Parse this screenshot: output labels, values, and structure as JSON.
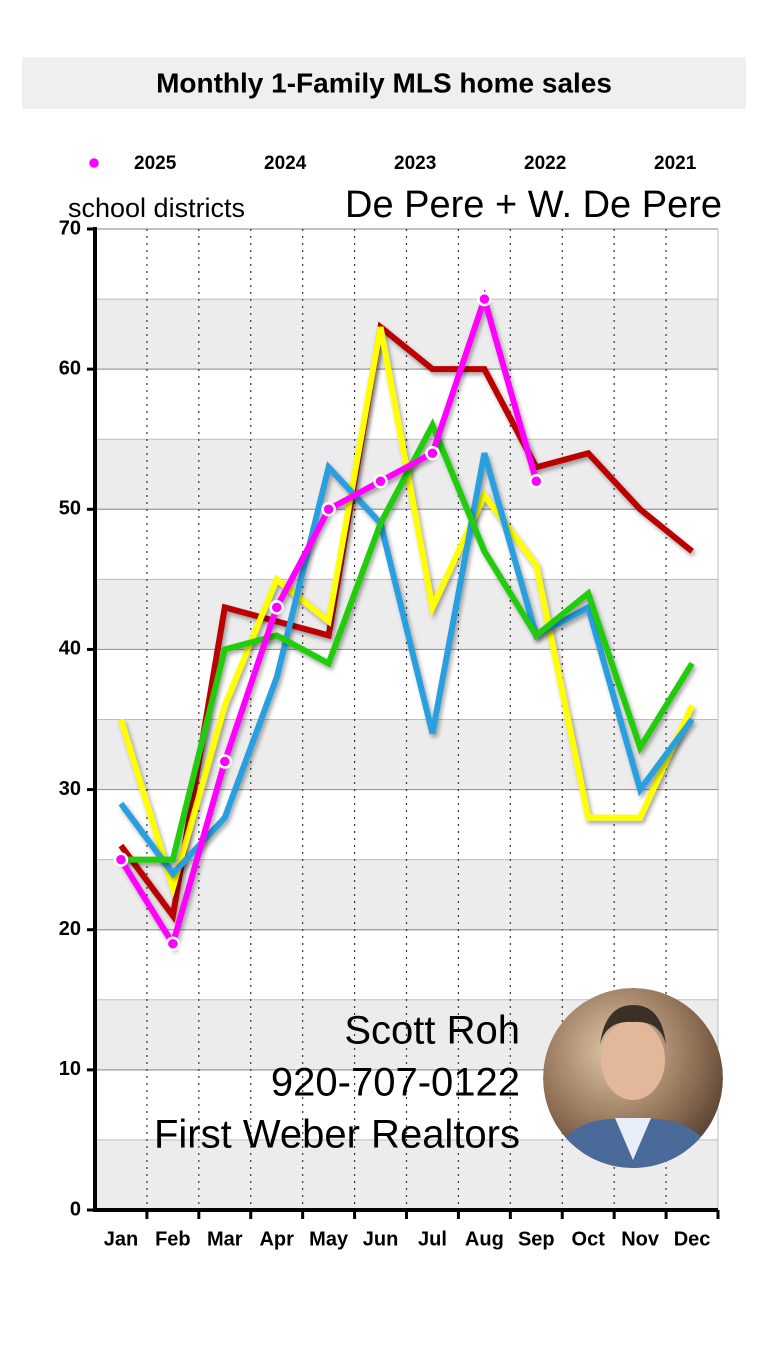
{
  "chart_data": {
    "type": "line",
    "title": "Monthly 1-Family MLS home sales",
    "subtitle": [
      "school districts",
      "De Pere + W. De Pere"
    ],
    "categories": [
      "Jan",
      "Feb",
      "Mar",
      "Apr",
      "May",
      "Jun",
      "Jul",
      "Aug",
      "Sep",
      "Oct",
      "Nov",
      "Dec"
    ],
    "series": [
      {
        "name": "2025",
        "color": "#ff00ff",
        "markers": true,
        "values": [
          25,
          19,
          32,
          43,
          50,
          52,
          54,
          65,
          52,
          null,
          null,
          null
        ]
      },
      {
        "name": "2024",
        "color": "#22cc11",
        "values": [
          25,
          25,
          40,
          41,
          39,
          49,
          56,
          47,
          41,
          44,
          33,
          39
        ]
      },
      {
        "name": "2023",
        "color": "#2a9fe0",
        "values": [
          29,
          24,
          28,
          38,
          53,
          49,
          34,
          54,
          41,
          43,
          30,
          35
        ]
      },
      {
        "name": "2022",
        "color": "#ffff00",
        "values": [
          35,
          23,
          36,
          45,
          42,
          63,
          43,
          51,
          46,
          28,
          28,
          36
        ]
      },
      {
        "name": "2021",
        "color": "#bb0000",
        "values": [
          26,
          21,
          43,
          42,
          41,
          63,
          60,
          60,
          53,
          54,
          50,
          47
        ]
      }
    ],
    "ylim": [
      0,
      70
    ],
    "yticks": [
      0,
      10,
      20,
      30,
      40,
      50,
      60,
      70
    ],
    "grid": true,
    "legend": "top",
    "annotations": [
      "Scott Roh",
      "920-707-0122",
      "First Weber Realtors"
    ]
  }
}
